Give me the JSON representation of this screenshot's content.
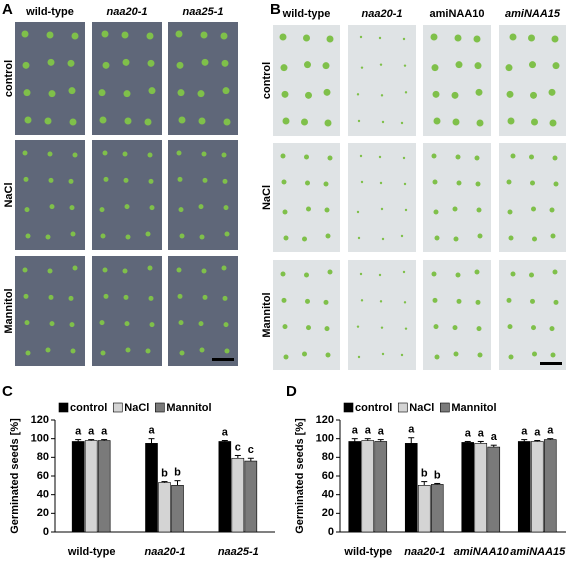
{
  "panel_labels": [
    "A",
    "B",
    "C",
    "D"
  ],
  "photo_panels": [
    {
      "columns": [
        "wild-type",
        "naa20-1",
        "naa25-1"
      ],
      "rows": [
        "control",
        "NaCl",
        "Mannitol"
      ]
    },
    {
      "columns": [
        "wild-type",
        "naa20-1",
        "amiNAA10",
        "amiNAA15"
      ],
      "rows": [
        "control",
        "NaCl",
        "Mannitol"
      ]
    }
  ],
  "chart_data": [
    {
      "type": "bar",
      "y_label": "Germinated seeds [%]",
      "categories": [
        "wild-type",
        "naa20-1",
        "naa25-1"
      ],
      "series": [
        {
          "name": "control",
          "color": "#000000",
          "values": [
            97,
            95,
            97
          ],
          "errors": [
            2,
            5,
            1
          ],
          "letters": [
            "a",
            "a",
            "a"
          ]
        },
        {
          "name": "NaCl",
          "color": "#d4d4d4",
          "values": [
            98,
            53,
            79
          ],
          "errors": [
            1,
            1,
            3
          ],
          "letters": [
            "a",
            "b",
            "c"
          ]
        },
        {
          "name": "Mannitol",
          "color": "#7a7a7a",
          "values": [
            98,
            50,
            76
          ],
          "errors": [
            1,
            5,
            3
          ],
          "letters": [
            "a",
            "b",
            "c"
          ]
        }
      ],
      "ylim": [
        0,
        120
      ],
      "yticks": [
        0,
        20,
        40,
        60,
        80,
        100,
        120
      ]
    },
    {
      "type": "bar",
      "y_label": "Germinated seeds [%]",
      "categories": [
        "wild-type",
        "naa20-1",
        "amiNAA10",
        "amiNAA15"
      ],
      "series": [
        {
          "name": "control",
          "color": "#000000",
          "values": [
            97,
            95,
            96,
            97
          ],
          "errors": [
            3,
            6,
            1,
            2
          ],
          "letters": [
            "a",
            "a",
            "a",
            "a"
          ]
        },
        {
          "name": "NaCl",
          "color": "#d4d4d4",
          "values": [
            98,
            50,
            95,
            97
          ],
          "errors": [
            2,
            4,
            2,
            1
          ],
          "letters": [
            "a",
            "b",
            "a",
            "a"
          ]
        },
        {
          "name": "Mannitol",
          "color": "#7a7a7a",
          "values": [
            97,
            51,
            91,
            99
          ],
          "errors": [
            2,
            1,
            2,
            1
          ],
          "letters": [
            "a",
            "b",
            "a",
            "a"
          ]
        }
      ],
      "ylim": [
        0,
        120
      ],
      "yticks": [
        0,
        20,
        40,
        60,
        80,
        100,
        120
      ]
    }
  ]
}
